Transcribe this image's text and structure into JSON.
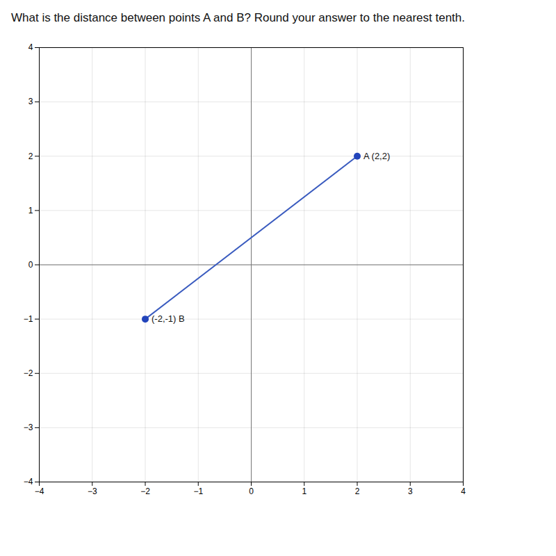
{
  "chart_data": {
    "type": "line",
    "title": "What is the distance between points A and B?  Round your answer to the nearest tenth.",
    "series": [
      {
        "type": "line",
        "color": "#3a5bbf",
        "x": [
          -2,
          2
        ],
        "values": [
          -1,
          2
        ]
      },
      {
        "type": "scatter",
        "marker": "circle",
        "color": "#2244bb",
        "x": [
          2,
          -2
        ],
        "values": [
          2,
          -1
        ]
      }
    ],
    "annotations": [
      {
        "x": 2,
        "y": 2,
        "text": "A (2,2)"
      },
      {
        "x": -2,
        "y": -1,
        "text": "(-2,-1) B"
      }
    ],
    "xlim": [
      -4,
      4
    ],
    "ylim": [
      -4,
      4
    ],
    "xticks": [
      -4,
      -3,
      -2,
      -1,
      0,
      1,
      2,
      3,
      4
    ],
    "yticks": [
      -4,
      -3,
      -2,
      -1,
      0,
      1,
      2,
      3,
      4
    ],
    "grid": true
  }
}
